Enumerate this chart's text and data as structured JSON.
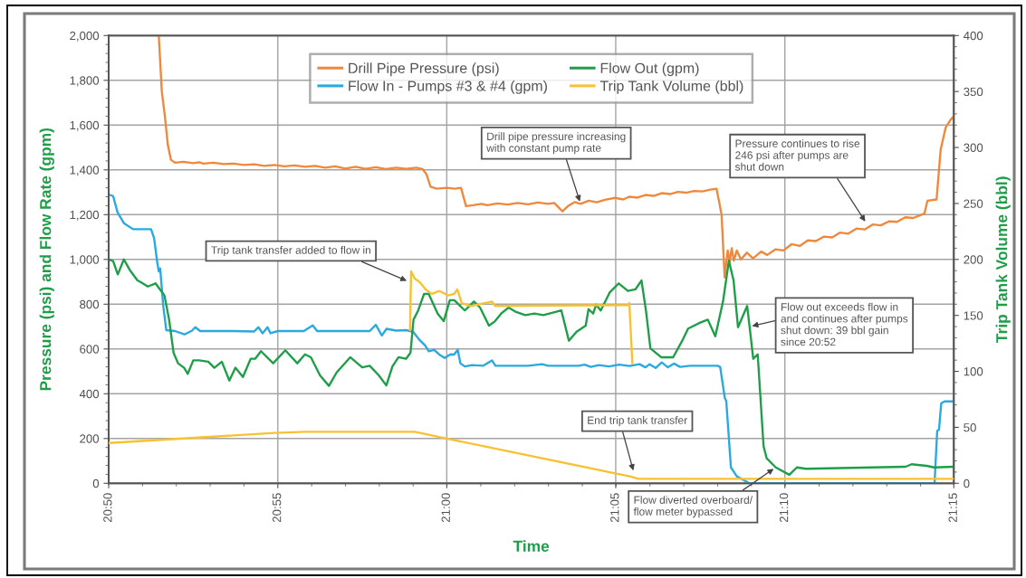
{
  "chart_data": {
    "type": "line",
    "xlabel": "Time",
    "ylabel": "Pressure (psi) and Flow Rate (gpm)",
    "y2label": "Trip Tank Volume (bbl)",
    "xlim": [
      20.8333,
      21.25
    ],
    "xticks": [
      {
        "value": 20.8333,
        "label": "20:50"
      },
      {
        "value": 20.9167,
        "label": "20:55"
      },
      {
        "value": 21.0,
        "label": "21:00"
      },
      {
        "value": 21.0833,
        "label": "21:05"
      },
      {
        "value": 21.1667,
        "label": "21:10"
      },
      {
        "value": 21.25,
        "label": "21:15"
      }
    ],
    "ylim": [
      0,
      2000
    ],
    "yticks": [
      0,
      200,
      400,
      600,
      800,
      {
        "value": 1000,
        "label": "1,000"
      },
      {
        "value": 1200,
        "label": "1,200"
      },
      {
        "value": 1400,
        "label": "1,400"
      },
      {
        "value": 1600,
        "label": "1,600"
      },
      {
        "value": 1800,
        "label": "1,800"
      },
      {
        "value": 2000,
        "label": "2,000"
      }
    ],
    "y2lim": [
      0,
      400
    ],
    "y2ticks": [
      0,
      50,
      100,
      150,
      200,
      250,
      300,
      350,
      400
    ],
    "grid": true,
    "legend": "top",
    "series": [
      {
        "name": "Drill Pipe Pressure (psi)",
        "color": "#f0883c",
        "axis": "y",
        "x": [
          20.858,
          20.8595,
          20.861,
          20.8625,
          20.864,
          20.866,
          20.87,
          20.875,
          20.878,
          20.88,
          20.885,
          20.89,
          20.895,
          20.9,
          20.905,
          20.91,
          20.915,
          20.92,
          20.925,
          20.93,
          20.935,
          20.94,
          20.945,
          20.95,
          20.955,
          20.96,
          20.965,
          20.97,
          20.975,
          20.98,
          20.985,
          20.988,
          20.99,
          20.992,
          20.995,
          21.0,
          21.004,
          21.007,
          21.0095,
          21.013,
          21.017,
          21.02,
          21.025,
          21.03,
          21.035,
          21.04,
          21.045,
          21.05,
          21.053,
          21.057,
          21.06,
          21.063,
          21.066,
          21.07,
          21.074,
          21.078,
          21.083,
          21.087,
          21.09,
          21.094,
          21.098,
          21.102,
          21.106,
          21.11,
          21.114,
          21.118,
          21.122,
          21.126,
          21.13,
          21.133,
          21.1355,
          21.137,
          21.1385,
          21.1395,
          21.1405,
          21.1415,
          21.143,
          21.145,
          21.148,
          21.151,
          21.155,
          21.158,
          21.162,
          21.166,
          21.17,
          21.174,
          21.178,
          21.182,
          21.186,
          21.19,
          21.194,
          21.198,
          21.202,
          21.206,
          21.21,
          21.214,
          21.218,
          21.222,
          21.226,
          21.23,
          21.2355,
          21.237,
          21.2415,
          21.2435,
          21.246,
          21.2485,
          21.25
        ],
        "values": [
          2000,
          1750,
          1640,
          1510,
          1445,
          1432,
          1436,
          1430,
          1434,
          1428,
          1432,
          1426,
          1428,
          1422,
          1425,
          1418,
          1422,
          1416,
          1420,
          1414,
          1418,
          1410,
          1416,
          1406,
          1414,
          1405,
          1412,
          1404,
          1410,
          1405,
          1410,
          1404,
          1380,
          1325,
          1316,
          1320,
          1316,
          1320,
          1238,
          1242,
          1248,
          1242,
          1250,
          1245,
          1252,
          1246,
          1254,
          1248,
          1252,
          1215,
          1240,
          1256,
          1248,
          1262,
          1255,
          1266,
          1275,
          1268,
          1280,
          1276,
          1288,
          1284,
          1296,
          1292,
          1302,
          1298,
          1306,
          1304,
          1312,
          1316,
          1200,
          920,
          1040,
          990,
          1050,
          995,
          1040,
          1000,
          1030,
          1005,
          1035,
          1020,
          1045,
          1040,
          1068,
          1060,
          1085,
          1082,
          1102,
          1098,
          1120,
          1115,
          1138,
          1134,
          1156,
          1152,
          1170,
          1168,
          1188,
          1185,
          1205,
          1262,
          1268,
          1490,
          1590,
          1625,
          1640
        ]
      },
      {
        "name": "Flow In - Pumps #3 & #4 (gpm)",
        "color": "#29a9e0",
        "axis": "y",
        "x": [
          20.8333,
          20.8355,
          20.8377,
          20.8408,
          20.8453,
          20.8542,
          20.8557,
          20.8572,
          20.858,
          20.8587,
          20.8602,
          20.8617,
          20.866,
          20.8707,
          20.8744,
          20.876,
          20.8784,
          20.895,
          20.905,
          20.9071,
          20.9092,
          20.9116,
          20.9131,
          20.9167,
          20.9295,
          20.9339,
          20.9361,
          20.962,
          20.965,
          20.968,
          20.9703,
          20.975,
          20.98,
          20.9834,
          20.9866,
          20.9894,
          20.9911,
          20.9938,
          20.9963,
          20.999,
          21.0018,
          21.0036,
          21.0054,
          21.0067,
          21.0089,
          21.0125,
          21.018,
          21.0223,
          21.024,
          21.04,
          21.047,
          21.05,
          21.065,
          21.068,
          21.071,
          21.075,
          21.08,
          21.085,
          21.09,
          21.095,
          21.098,
          21.1,
          21.103,
          21.106,
          21.109,
          21.112,
          21.115,
          21.12,
          21.1335,
          21.1348,
          21.1371,
          21.1378,
          21.1401,
          21.143,
          21.1488,
          21.152,
          21.2405,
          21.2418,
          21.2427,
          21.2438,
          21.2455,
          21.25
        ],
        "values": [
          1290,
          1283,
          1210,
          1162,
          1135,
          1135,
          1095,
          990,
          946,
          960,
          793,
          684,
          680,
          665,
          682,
          697,
          680,
          680,
          678,
          697,
          670,
          697,
          670,
          680,
          680,
          705,
          680,
          680,
          708,
          660,
          690,
          682,
          684,
          677,
          640,
          615,
          590,
          596,
          575,
          560,
          576,
          575,
          596,
          536,
          522,
          528,
          525,
          549,
          525,
          525,
          532,
          525,
          525,
          530,
          520,
          528,
          522,
          530,
          524,
          532,
          518,
          532,
          515,
          540,
          518,
          535,
          520,
          525,
          525,
          520,
          380,
          368,
          71,
          31,
          2,
          0,
          0,
          235,
          240,
          358,
          366,
          366
        ]
      },
      {
        "name": "Flow Out (gpm)",
        "color": "#1e9e48",
        "axis": "y",
        "x": [
          20.8333,
          20.8355,
          20.8378,
          20.8408,
          20.8437,
          20.8475,
          20.849,
          20.8526,
          20.8564,
          20.8586,
          20.8608,
          20.8631,
          20.8653,
          20.8675,
          20.8705,
          20.8723,
          20.875,
          20.8779,
          20.8824,
          20.8854,
          20.8891,
          20.8928,
          20.8958,
          20.8995,
          20.9033,
          20.9055,
          20.9084,
          20.9144,
          20.9204,
          20.9263,
          20.9301,
          20.933,
          20.9375,
          20.9419,
          20.9457,
          20.9524,
          20.9583,
          20.962,
          20.9665,
          20.9702,
          20.9732,
          20.9762,
          20.9799,
          20.9821,
          20.9836,
          20.9859,
          20.9888,
          20.9911,
          20.9955,
          20.9985,
          21.0015,
          21.0037,
          21.0089,
          21.0134,
          21.0164,
          21.0208,
          21.0238,
          21.0268,
          21.0305,
          21.0342,
          21.0387,
          21.0432,
          21.0476,
          21.0536,
          21.0565,
          21.0602,
          21.064,
          21.0685,
          21.0699,
          21.0722,
          21.0736,
          21.0759,
          21.0803,
          21.0848,
          21.0893,
          21.093,
          21.096,
          21.0982,
          21.1004,
          21.1057,
          21.1116,
          21.1161,
          21.119,
          21.125,
          21.1287,
          21.1324,
          21.1362,
          21.1391,
          21.1414,
          21.1436,
          21.1481,
          21.1493,
          21.1511,
          21.1533,
          21.1562,
          21.1577,
          21.1622,
          21.1689,
          21.1726,
          21.1771,
          21.2262,
          21.2292,
          21.2366,
          21.2403,
          21.25
        ],
        "values": [
          1000,
          993,
          933,
          1000,
          953,
          906,
          899,
          879,
          893,
          866,
          839,
          731,
          583,
          536,
          516,
          489,
          549,
          549,
          543,
          516,
          543,
          459,
          516,
          475,
          556,
          556,
          590,
          536,
          594,
          536,
          576,
          563,
          482,
          435,
          495,
          563,
          518,
          525,
          482,
          437,
          522,
          563,
          556,
          583,
          731,
          772,
          846,
          846,
          758,
          724,
          818,
          818,
          772,
          812,
          785,
          704,
          724,
          758,
          785,
          765,
          751,
          758,
          751,
          765,
          772,
          637,
          677,
          704,
          778,
          758,
          798,
          772,
          852,
          893,
          859,
          866,
          906,
          772,
          603,
          563,
          563,
          637,
          691,
          718,
          731,
          657,
          812,
          994,
          906,
          697,
          792,
          700,
          556,
          576,
          166,
          112,
          71,
          38,
          71,
          65,
          74,
          85,
          78,
          71,
          74
        ]
      },
      {
        "name": "Trip Tank Volume (bbl)",
        "color": "#f7c131",
        "axis": "y2",
        "x": [
          20.8333,
          20.87,
          20.915,
          20.93,
          20.9842,
          21.0,
          21.0907,
          21.0944,
          21.25
        ],
        "values": [
          36,
          40,
          45,
          46,
          46,
          40,
          6,
          4,
          4
        ]
      },
      {
        "color": "#f7c131",
        "axis": "y",
        "x": [
          20.9819,
          20.9824,
          20.9843,
          20.9866,
          20.9896,
          20.9926,
          20.9963,
          21.0007,
          21.0037,
          21.0052,
          21.0074,
          21.0119,
          21.0223,
          21.0238,
          21.0893,
          21.09,
          21.0915
        ],
        "values": [
          684,
          947,
          913,
          899,
          866,
          846,
          859,
          839,
          846,
          866,
          805,
          792,
          812,
          792,
          796,
          805,
          536
        ]
      }
    ],
    "annotations": [
      {
        "text": "Drill pipe pressure increasing\nwith constant pump rate",
        "x": 21.066,
        "y": 1248
      },
      {
        "text": "Pressure continues to rise\n246 psi after pumps are\nshut down",
        "x": 21.207,
        "y": 1160
      },
      {
        "text": "Trip tank transfer added to flow in",
        "x": 20.9814,
        "y": 900
      },
      {
        "text": "Flow out exceeds flow in\nand continues after pumps\nshut down: 39 bbl gain\nsince 20:52",
        "x": 21.1493,
        "y": 700
      },
      {
        "text": "End trip tank transfer",
        "x": 21.0923,
        "y": 46
      },
      {
        "text": "Flow diverted overboard/\nflow meter bypassed",
        "x": 21.1622,
        "y": 71
      }
    ]
  }
}
